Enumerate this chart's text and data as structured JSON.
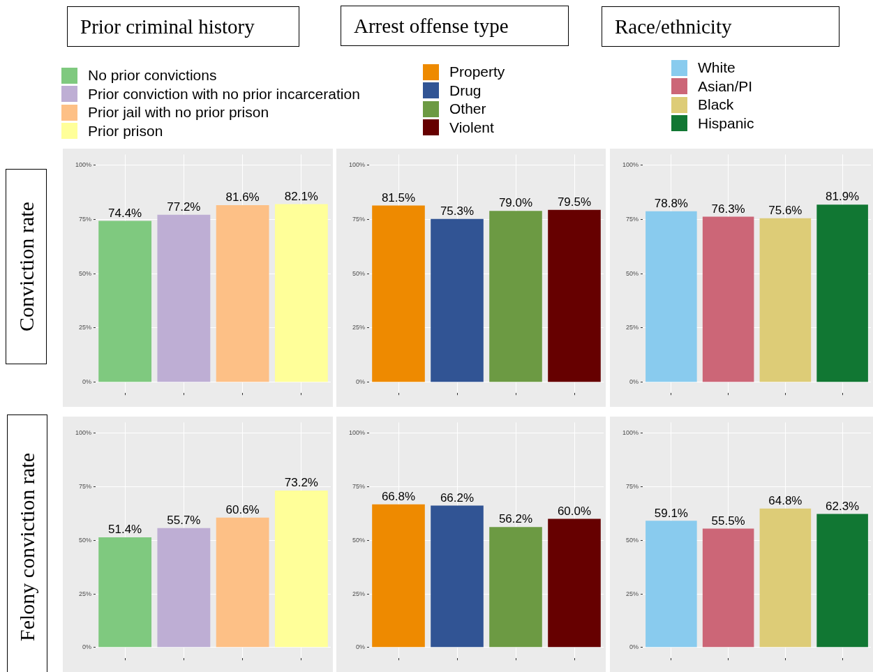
{
  "chart_data": [
    {
      "type": "bar",
      "title": "Prior criminal history",
      "ylabel": "Conviction rate",
      "categories": [
        null,
        null,
        null,
        null
      ],
      "series": [
        {
          "name": "No prior convictions",
          "color": "#7fc97f",
          "values": [
            74.4,
            null,
            null,
            null
          ],
          "value_labels": [
            "74.4%",
            null,
            null,
            null
          ]
        },
        {
          "name": "Prior conviction with no prior incarceration",
          "color": "#beaed4",
          "values": [
            null,
            77.2,
            null,
            null
          ],
          "value_labels": [
            null,
            "77.2%",
            null,
            null
          ]
        },
        {
          "name": "Prior jail with no prior prison",
          "color": "#fdc086",
          "values": [
            null,
            null,
            81.6,
            null
          ],
          "value_labels": [
            null,
            null,
            "81.6%",
            null
          ]
        },
        {
          "name": "Prior prison",
          "color": "#ffff99",
          "values": [
            null,
            null,
            null,
            82.1
          ],
          "value_labels": [
            null,
            null,
            null,
            "82.1%"
          ]
        }
      ],
      "ylim": [
        -5,
        105
      ],
      "yticks": [
        {
          "value": 0,
          "label": "0%"
        },
        {
          "value": 25,
          "label": "25%"
        },
        {
          "value": 50,
          "label": "50%"
        },
        {
          "value": 75,
          "label": "75%"
        },
        {
          "value": 100,
          "label": "100%"
        }
      ],
      "grid": true,
      "legend": "top",
      "tick_labels": "y"
    },
    {
      "type": "bar",
      "title": "Arrest offense type",
      "categories": [
        null,
        null,
        null,
        null
      ],
      "series": [
        {
          "name": "Property",
          "color": "#ee8a00",
          "values": [
            81.5,
            null,
            null,
            null
          ],
          "value_labels": [
            "81.5%",
            null,
            null,
            null
          ]
        },
        {
          "name": "Drug",
          "color": "#315494",
          "values": [
            null,
            75.3,
            null,
            null
          ],
          "value_labels": [
            null,
            "75.3%",
            null,
            null
          ]
        },
        {
          "name": "Other",
          "color": "#6c9a43",
          "values": [
            null,
            null,
            79.0,
            null
          ],
          "value_labels": [
            null,
            null,
            "79.0%",
            null
          ]
        },
        {
          "name": "Violent",
          "color": "#660000",
          "values": [
            null,
            null,
            null,
            79.5
          ],
          "value_labels": [
            null,
            null,
            null,
            "79.5%"
          ]
        }
      ],
      "ylim": [
        -5,
        105
      ],
      "yticks": [
        {
          "value": 0,
          "label": "0%"
        },
        {
          "value": 25,
          "label": "25%"
        },
        {
          "value": 50,
          "label": "50%"
        },
        {
          "value": 75,
          "label": "75%"
        },
        {
          "value": 100,
          "label": "100%"
        }
      ],
      "grid": true,
      "legend": "top",
      "tick_labels": "y"
    },
    {
      "type": "bar",
      "title": "Race/ethnicity",
      "categories": [
        null,
        null,
        null,
        null
      ],
      "series": [
        {
          "name": "White",
          "color": "#89cbee",
          "values": [
            78.8,
            null,
            null,
            null
          ],
          "value_labels": [
            "78.8%",
            null,
            null,
            null
          ]
        },
        {
          "name": "Asian/PI",
          "color": "#cc6677",
          "values": [
            null,
            76.3,
            null,
            null
          ],
          "value_labels": [
            null,
            "76.3%",
            null,
            null
          ]
        },
        {
          "name": "Black",
          "color": "#ddcc77",
          "values": [
            null,
            null,
            75.6,
            null
          ],
          "value_labels": [
            null,
            null,
            "75.6%",
            null
          ]
        },
        {
          "name": "Hispanic",
          "color": "#117733",
          "values": [
            null,
            null,
            null,
            81.9
          ],
          "value_labels": [
            null,
            null,
            null,
            "81.9%"
          ]
        }
      ],
      "ylim": [
        -5,
        105
      ],
      "yticks": [
        {
          "value": 0,
          "label": "0%"
        },
        {
          "value": 25,
          "label": "25%"
        },
        {
          "value": 50,
          "label": "50%"
        },
        {
          "value": 75,
          "label": "75%"
        },
        {
          "value": 100,
          "label": "100%"
        }
      ],
      "grid": true,
      "legend": "top",
      "tick_labels": "y"
    },
    {
      "type": "bar",
      "ylabel": "Felony conviction rate",
      "categories": [
        null,
        null,
        null,
        null
      ],
      "series": [
        {
          "color": "#7fc97f",
          "values": [
            51.4,
            null,
            null,
            null
          ],
          "value_labels": [
            "51.4%",
            null,
            null,
            null
          ]
        },
        {
          "color": "#beaed4",
          "values": [
            null,
            55.7,
            null,
            null
          ],
          "value_labels": [
            null,
            "55.7%",
            null,
            null
          ]
        },
        {
          "color": "#fdc086",
          "values": [
            null,
            null,
            60.6,
            null
          ],
          "value_labels": [
            null,
            null,
            "60.6%",
            null
          ]
        },
        {
          "color": "#ffff99",
          "values": [
            null,
            null,
            null,
            73.2
          ],
          "value_labels": [
            null,
            null,
            null,
            "73.2%"
          ]
        }
      ],
      "ylim": [
        -5,
        105
      ],
      "yticks": [
        {
          "value": 0,
          "label": "0%"
        },
        {
          "value": 25,
          "label": "25%"
        },
        {
          "value": 50,
          "label": "50%"
        },
        {
          "value": 75,
          "label": "75%"
        },
        {
          "value": 100,
          "label": "100%"
        }
      ],
      "grid": true,
      "tick_labels": "y"
    },
    {
      "type": "bar",
      "categories": [
        null,
        null,
        null,
        null
      ],
      "series": [
        {
          "color": "#ee8a00",
          "values": [
            66.8,
            null,
            null,
            null
          ],
          "value_labels": [
            "66.8%",
            null,
            null,
            null
          ]
        },
        {
          "color": "#315494",
          "values": [
            null,
            66.2,
            null,
            null
          ],
          "value_labels": [
            null,
            "66.2%",
            null,
            null
          ]
        },
        {
          "color": "#6c9a43",
          "values": [
            null,
            null,
            56.2,
            null
          ],
          "value_labels": [
            null,
            null,
            "56.2%",
            null
          ]
        },
        {
          "color": "#660000",
          "values": [
            null,
            null,
            null,
            60.0
          ],
          "value_labels": [
            null,
            null,
            null,
            "60.0%"
          ]
        }
      ],
      "ylim": [
        -5,
        105
      ],
      "yticks": [
        {
          "value": 0,
          "label": "0%"
        },
        {
          "value": 25,
          "label": "25%"
        },
        {
          "value": 50,
          "label": "50%"
        },
        {
          "value": 75,
          "label": "75%"
        },
        {
          "value": 100,
          "label": "100%"
        }
      ],
      "grid": true,
      "tick_labels": "y"
    },
    {
      "type": "bar",
      "categories": [
        null,
        null,
        null,
        null
      ],
      "series": [
        {
          "color": "#89cbee",
          "values": [
            59.1,
            null,
            null,
            null
          ],
          "value_labels": [
            "59.1%",
            null,
            null,
            null
          ]
        },
        {
          "color": "#cc6677",
          "values": [
            null,
            55.5,
            null,
            null
          ],
          "value_labels": [
            null,
            "55.5%",
            null,
            null
          ]
        },
        {
          "color": "#ddcc77",
          "values": [
            null,
            null,
            64.8,
            null
          ],
          "value_labels": [
            null,
            null,
            "64.8%",
            null
          ]
        },
        {
          "color": "#117733",
          "values": [
            null,
            null,
            null,
            62.3
          ],
          "value_labels": [
            null,
            null,
            null,
            "62.3%"
          ]
        }
      ],
      "ylim": [
        -5,
        105
      ],
      "yticks": [
        {
          "value": 0,
          "label": "0%"
        },
        {
          "value": 25,
          "label": "25%"
        },
        {
          "value": 50,
          "label": "50%"
        },
        {
          "value": 75,
          "label": "75%"
        },
        {
          "value": 100,
          "label": "100%"
        }
      ],
      "grid": true,
      "tick_labels": "y"
    }
  ]
}
